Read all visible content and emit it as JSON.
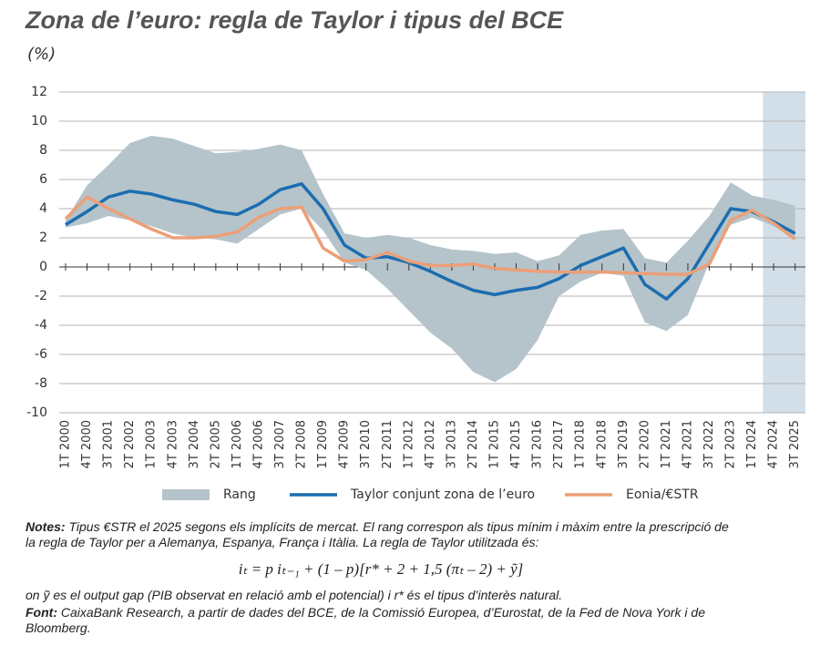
{
  "chart_data": {
    "type": "line",
    "title": "Zona de l’euro: regla de Taylor i tipus del BCE",
    "subtitle": "(%)",
    "categories": [
      "1T 2000",
      "4T 2000",
      "3T 2001",
      "2T 2002",
      "1T 2003",
      "4T 2003",
      "3T 2004",
      "2T 2005",
      "1T 2006",
      "4T 2006",
      "3T 2007",
      "2T 2008",
      "1T 2009",
      "4T 2009",
      "3T 2010",
      "2T 2011",
      "1T 2012",
      "4T 2012",
      "3T 2013",
      "2T 2014",
      "1T 2015",
      "4T 2015",
      "3T 2016",
      "2T 2017",
      "1T 2018",
      "4T 2018",
      "3T 2019",
      "2T 2020",
      "1T 2021",
      "4T 2021",
      "3T 2022",
      "2T 2023",
      "1T 2024",
      "4T 2024",
      "3T 2025"
    ],
    "band": {
      "name": "Rang",
      "color": "#b5c4cb",
      "high": [
        3.2,
        5.6,
        7.0,
        8.5,
        9.0,
        8.8,
        8.3,
        7.8,
        7.9,
        8.1,
        8.4,
        8.0,
        5.0,
        2.3,
        2.0,
        2.2,
        2.0,
        1.5,
        1.2,
        1.1,
        0.9,
        1.0,
        0.4,
        0.8,
        2.2,
        2.5,
        2.6,
        0.6,
        0.3,
        1.8,
        3.5,
        5.8,
        4.9,
        4.6,
        4.2
      ],
      "low": [
        2.7,
        3.0,
        3.5,
        3.2,
        2.8,
        2.3,
        2.0,
        1.9,
        1.6,
        2.6,
        3.6,
        4.0,
        2.5,
        0.3,
        -0.2,
        -1.5,
        -3.0,
        -4.5,
        -5.6,
        -7.2,
        -7.9,
        -7.0,
        -5.0,
        -2.0,
        -1.0,
        -0.4,
        -0.6,
        -3.8,
        -4.4,
        -3.3,
        0.3,
        2.9,
        3.4,
        2.8,
        2.0
      ]
    },
    "series": [
      {
        "name": "Taylor conjunt zona de l’euro",
        "color": "#1c6db0",
        "values": [
          2.9,
          3.8,
          4.8,
          5.2,
          5.0,
          4.6,
          4.3,
          3.8,
          3.6,
          4.3,
          5.3,
          5.7,
          4.0,
          1.5,
          0.6,
          0.7,
          0.3,
          -0.3,
          -1.0,
          -1.6,
          -1.9,
          -1.6,
          -1.4,
          -0.8,
          0.1,
          0.7,
          1.3,
          -1.2,
          -2.2,
          -0.8,
          1.6,
          4.0,
          3.8,
          3.1,
          2.3
        ]
      },
      {
        "name": "Eonia/€STR",
        "color": "#eb9f78",
        "values": [
          3.3,
          4.8,
          4.0,
          3.3,
          2.6,
          2.0,
          2.0,
          2.1,
          2.4,
          3.4,
          4.0,
          4.1,
          1.3,
          0.4,
          0.5,
          1.0,
          0.4,
          0.1,
          0.1,
          0.2,
          -0.1,
          -0.2,
          -0.3,
          -0.35,
          -0.35,
          -0.35,
          -0.4,
          -0.45,
          -0.5,
          -0.5,
          0.2,
          3.2,
          3.9,
          3.0,
          1.9
        ]
      }
    ],
    "forecast_shade": {
      "from": "4T 2024",
      "color": "#d3dfe8"
    },
    "ylim": [
      -10,
      12
    ],
    "yticks": [
      -10,
      -8,
      -6,
      -4,
      -2,
      0,
      2,
      4,
      6,
      8,
      10,
      12
    ],
    "grid": true
  },
  "notes": {
    "label": "Notes:",
    "text": "Tipus €STR el 2025 segons els implícits de mercat. El rang correspon als tipus mínim i màxim entre la prescripció de la regla de Taylor per a Alemanya, Espanya, França i Itàlia. La regla de Taylor utilitzada és:"
  },
  "formula": "iₜ = p iₜ₋₁ + (1 – p)[r* + 2 + 1,5 (πₜ – 2) + ỹ]",
  "formula_note": "on ỹ es el output gap (PIB observat en relació amb el potencial) i r* és el tipus d’interès natural.",
  "source": {
    "label": "Font:",
    "text": "CaixaBank Research, a partir de dades del BCE, de la Comissió Europea, d’Eurostat, de la Fed de Nova York i de Bloomberg."
  }
}
